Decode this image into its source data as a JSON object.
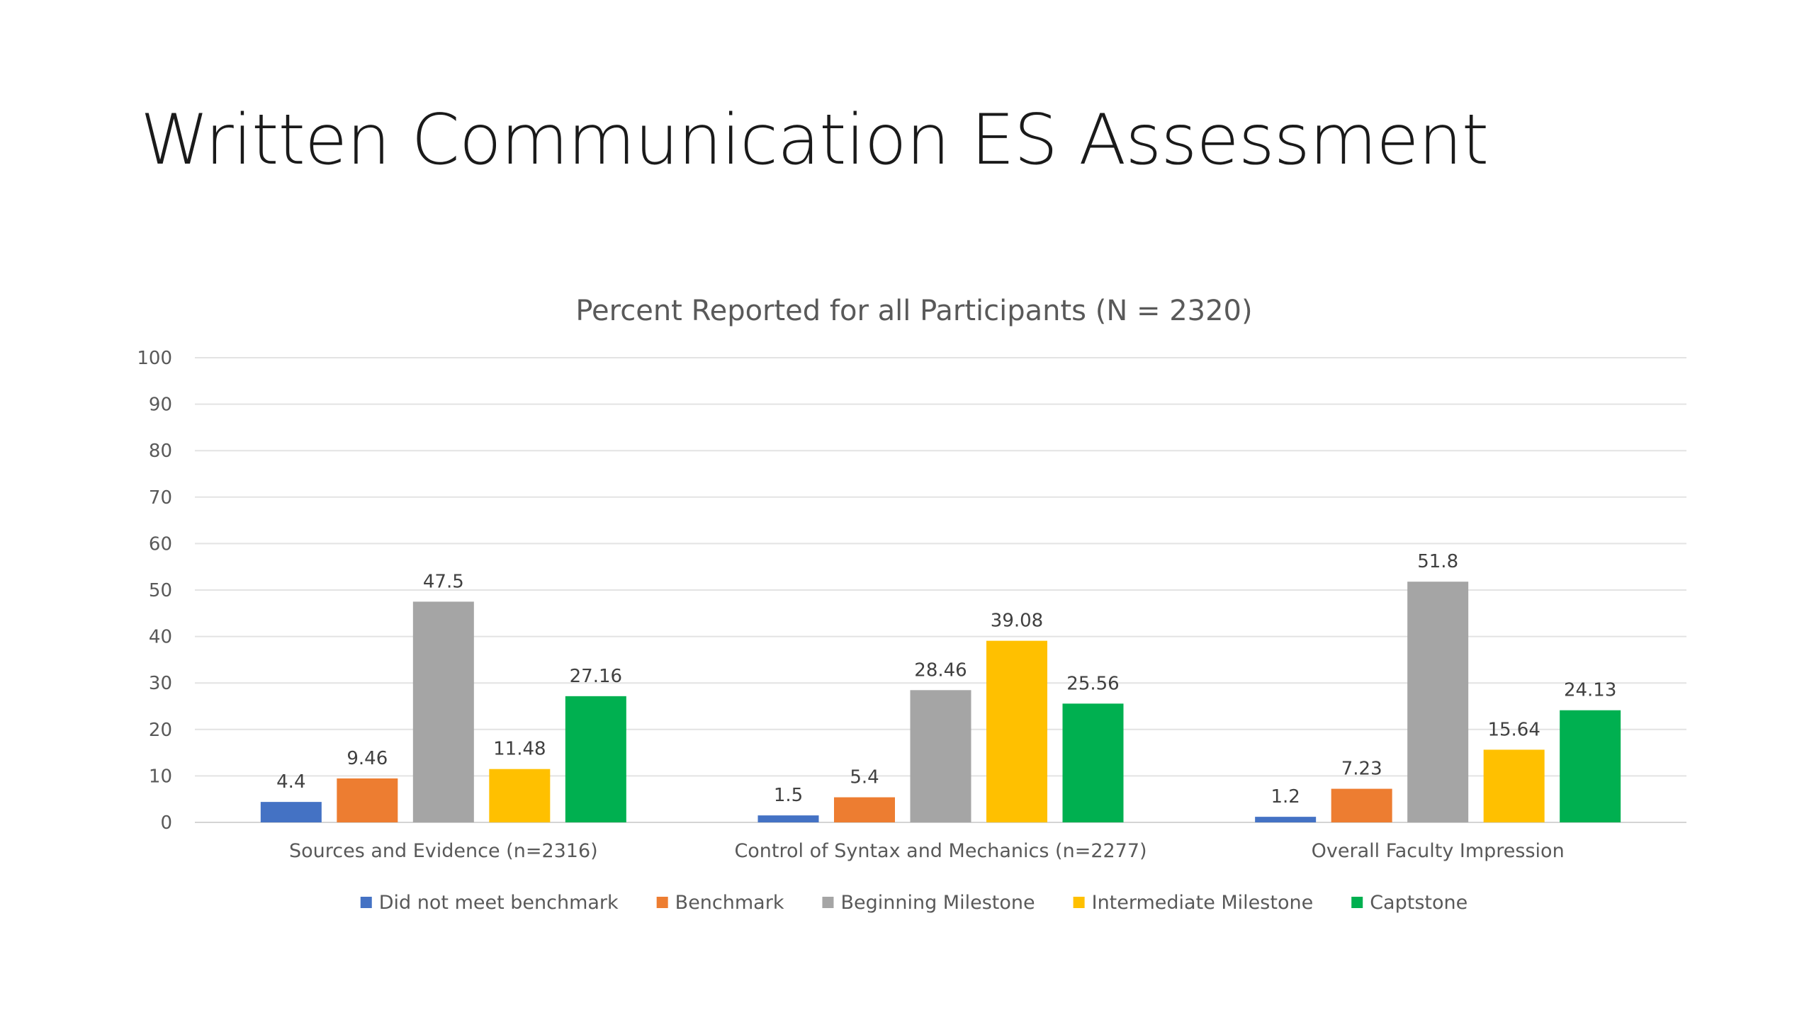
{
  "slide": {
    "title": "Written Communication ES Assessment"
  },
  "chart_data": {
    "type": "bar",
    "title": "Percent Reported for all Participants (N = 2320)",
    "xlabel": "",
    "ylabel": "",
    "ylim": [
      0,
      100
    ],
    "yticks": [
      0,
      10,
      20,
      30,
      40,
      50,
      60,
      70,
      80,
      90,
      100
    ],
    "grid": true,
    "legend_position": "bottom",
    "categories": [
      "Sources and Evidence (n=2316)",
      "Control of Syntax and Mechanics (n=2277)",
      "Overall Faculty Impression"
    ],
    "series": [
      {
        "name": "Did not meet benchmark",
        "color": "#4472C4",
        "values": [
          4.4,
          1.5,
          1.2
        ]
      },
      {
        "name": "Benchmark",
        "color": "#ED7D31",
        "values": [
          9.46,
          5.4,
          7.23
        ]
      },
      {
        "name": "Beginning Milestone",
        "color": "#A5A5A5",
        "values": [
          47.5,
          28.46,
          51.8
        ]
      },
      {
        "name": "Intermediate Milestone",
        "color": "#FFC000",
        "values": [
          11.48,
          39.08,
          15.64
        ]
      },
      {
        "name": "Captstone",
        "color": "#00B050",
        "values": [
          27.16,
          25.56,
          24.13
        ]
      }
    ]
  }
}
